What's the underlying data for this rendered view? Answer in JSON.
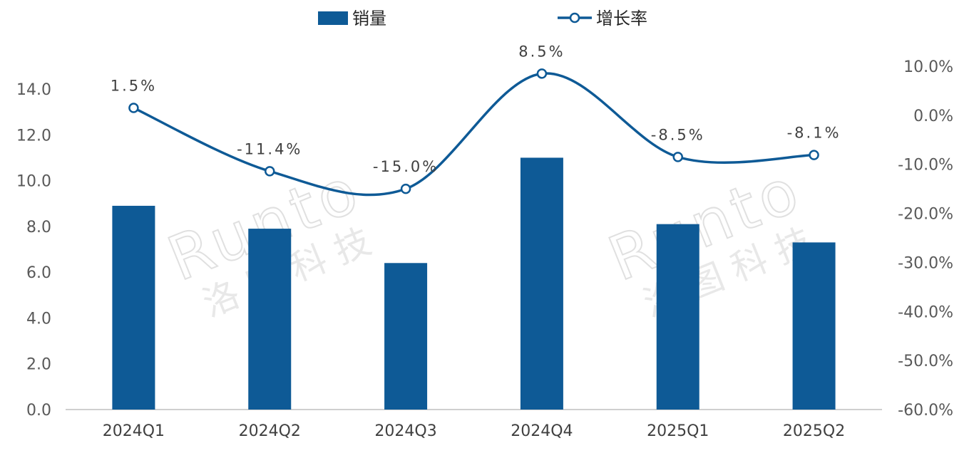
{
  "chart_data": {
    "type": "bar",
    "categories": [
      "2024Q1",
      "2024Q2",
      "2024Q3",
      "2024Q4",
      "2025Q1",
      "2025Q2"
    ],
    "series": [
      {
        "name": "销量",
        "type": "bar",
        "axis": "left",
        "values": [
          8.9,
          7.9,
          6.4,
          11.0,
          8.1,
          7.3
        ]
      },
      {
        "name": "增长率",
        "type": "line",
        "axis": "right",
        "values": [
          1.5,
          -11.4,
          -15.0,
          8.5,
          -8.5,
          -8.1
        ],
        "labels": [
          "1.5%",
          "-11.4%",
          "-15.0%",
          "8.5%",
          "-8.5%",
          "-8.1%"
        ]
      }
    ],
    "left_axis": {
      "ylim": [
        0,
        14
      ],
      "ticks": [
        "0.0",
        "2.0",
        "4.0",
        "6.0",
        "8.0",
        "10.0",
        "12.0",
        "14.0"
      ]
    },
    "right_axis": {
      "ylim": [
        -60,
        10
      ],
      "ticks": [
        "-60.0%",
        "-50.0%",
        "-40.0%",
        "-30.0%",
        "-20.0%",
        "-10.0%",
        "0.0%",
        "10.0%"
      ]
    },
    "legend_position": "top",
    "grid": false,
    "colors": {
      "bar": "#0e5a96",
      "line": "#0e5a96",
      "marker_fill": "#ffffff"
    }
  },
  "watermark": {
    "latin": "Runto",
    "chinese": "洛图科技"
  }
}
